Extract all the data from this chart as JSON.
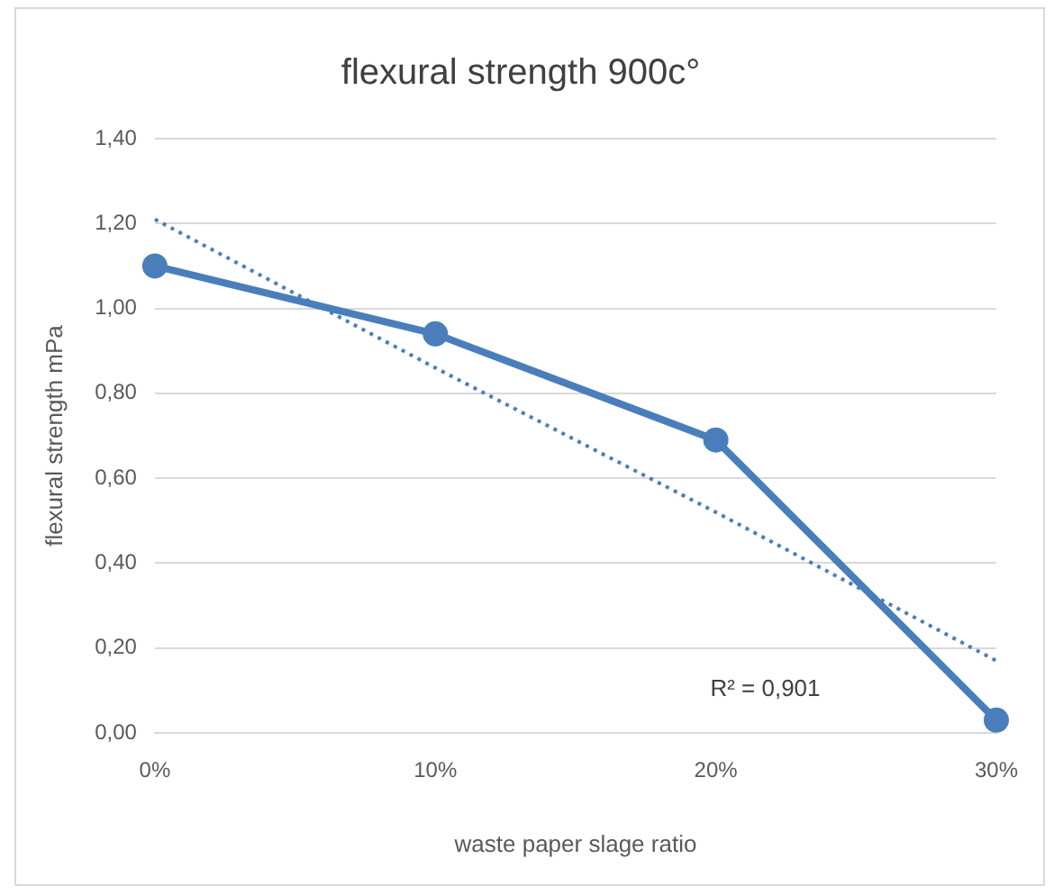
{
  "chart_data": {
    "type": "line",
    "title": "flexural strength 900c°",
    "xlabel": "waste paper slage ratio",
    "ylabel": "flexural strength mPa",
    "categories": [
      "0%",
      "10%",
      "20%",
      "30%"
    ],
    "series": [
      {
        "color": "#4a7ebb",
        "values": [
          1.1,
          0.94,
          0.69,
          0.03
        ],
        "marker": "circle",
        "line_style": "solid"
      },
      {
        "type": "line",
        "color": "#4a7ebb",
        "values": [
          1.21,
          0.86,
          0.52,
          0.17
        ],
        "marker": "none",
        "line_style": "dotted"
      }
    ],
    "ylim": [
      0,
      1.4
    ],
    "yticks": [
      {
        "value": 0,
        "label": "0,00"
      },
      {
        "value": 0.2,
        "label": "0,20"
      },
      {
        "value": 0.4,
        "label": "0,40"
      },
      {
        "value": 0.6,
        "label": "0,60"
      },
      {
        "value": 0.8,
        "label": "0,80"
      },
      {
        "value": 1.0,
        "label": "1,00"
      },
      {
        "value": 1.2,
        "label": "1,20"
      },
      {
        "value": 1.4,
        "label": "1,40"
      }
    ],
    "grid": "y",
    "legend": false,
    "annotations": [
      "R² = 0,901"
    ]
  }
}
